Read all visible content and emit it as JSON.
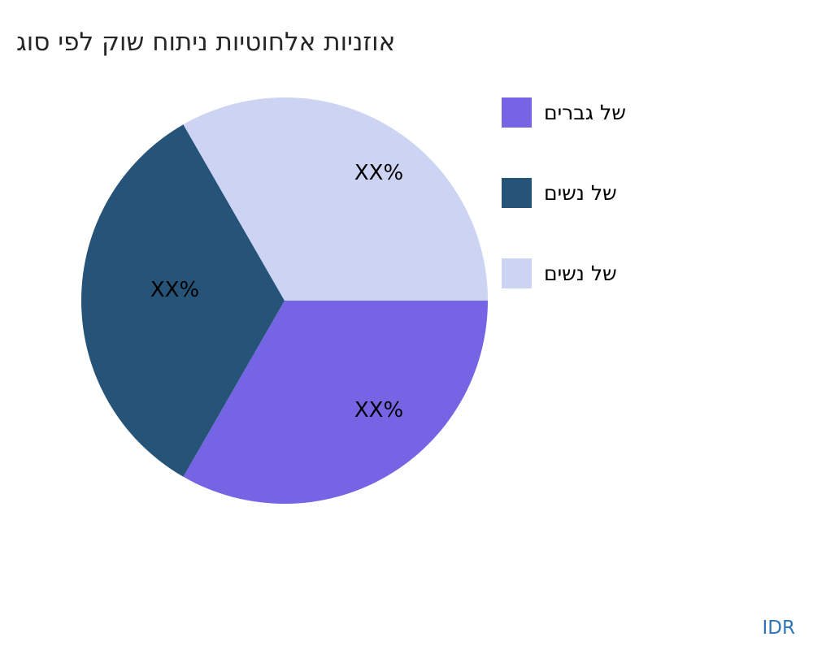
{
  "title": "אוזניות אלחוטיות ניתוח שוק לפי סוג",
  "watermark": "IDR",
  "chart_data": {
    "type": "pie",
    "title": "אוזניות אלחוטיות ניתוח שוק לפי סוג",
    "start_angle_deg": 0,
    "direction": "clockwise",
    "legend_position": "right",
    "slices": [
      {
        "name": "של גברים",
        "value": 33.3,
        "label": "XX%",
        "color": "#7565e4"
      },
      {
        "name": "של נשים",
        "value": 33.4,
        "label": "XX%",
        "color": "#265378"
      },
      {
        "name": "של נשים",
        "value": 33.3,
        "label": "XX%",
        "color": "#cdd3f2"
      }
    ]
  }
}
